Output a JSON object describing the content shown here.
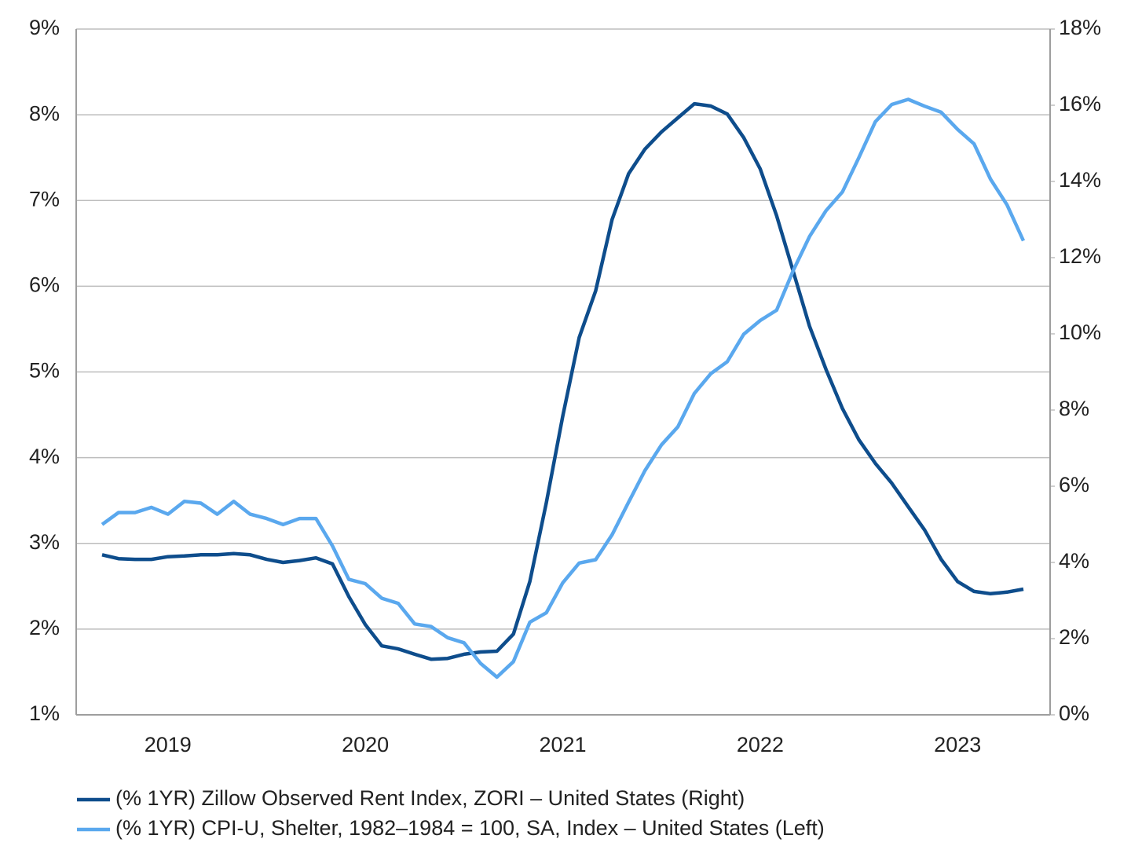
{
  "chart_data": {
    "type": "line",
    "categories": [
      null,
      null,
      null,
      null,
      "2019",
      null,
      null,
      null,
      null,
      null,
      null,
      null,
      null,
      null,
      null,
      null,
      "2020",
      null,
      null,
      null,
      null,
      null,
      null,
      null,
      null,
      null,
      null,
      null,
      "2021",
      null,
      null,
      null,
      null,
      null,
      null,
      null,
      null,
      null,
      null,
      null,
      "2022",
      null,
      null,
      null,
      null,
      null,
      null,
      null,
      null,
      null,
      null,
      null,
      "2023",
      null,
      null,
      null,
      null
    ],
    "series": [
      {
        "name": "(% 1YR) Zillow Observed Rent Index, ZORI – United States (Right)",
        "color": "#0e4d8c",
        "axis": "y2",
        "values": [
          4.2,
          4.1,
          4.08,
          4.08,
          4.15,
          4.17,
          4.2,
          4.2,
          4.23,
          4.2,
          4.08,
          4.0,
          4.05,
          4.12,
          3.96,
          3.1,
          2.37,
          1.81,
          1.73,
          1.59,
          1.46,
          1.48,
          1.59,
          1.65,
          1.67,
          2.12,
          3.5,
          5.57,
          7.84,
          9.9,
          11.13,
          13.0,
          14.2,
          14.85,
          15.3,
          15.67,
          16.04,
          15.98,
          15.77,
          15.15,
          14.33,
          13.1,
          11.65,
          10.2,
          9.07,
          8.04,
          7.22,
          6.6,
          6.08,
          5.46,
          4.85,
          4.08,
          3.5,
          3.24,
          3.18,
          3.22,
          3.3
        ]
      },
      {
        "name": "(% 1YR) CPI-U, Shelter, 1982–1984 = 100, SA, Index – United States (Left)",
        "color": "#5aa8ee",
        "values": [
          3.22,
          3.36,
          3.36,
          3.42,
          3.34,
          3.49,
          3.47,
          3.34,
          3.49,
          3.34,
          3.29,
          3.22,
          3.29,
          3.29,
          2.97,
          2.58,
          2.53,
          2.36,
          2.3,
          2.06,
          2.03,
          1.9,
          1.84,
          1.6,
          1.44,
          1.62,
          2.08,
          2.19,
          2.54,
          2.77,
          2.81,
          3.1,
          3.48,
          3.85,
          4.15,
          4.36,
          4.75,
          4.98,
          5.12,
          5.44,
          5.6,
          5.72,
          6.18,
          6.58,
          6.88,
          7.1,
          7.5,
          7.92,
          8.12,
          8.18,
          8.1,
          8.03,
          7.83,
          7.66,
          7.25,
          6.95,
          6.53
        ]
      }
    ],
    "ylim": [
      1,
      9
    ],
    "yticks": [
      {
        "value": 1,
        "label": "1%"
      },
      {
        "value": 2,
        "label": "2%"
      },
      {
        "value": 3,
        "label": "3%"
      },
      {
        "value": 4,
        "label": "4%"
      },
      {
        "value": 5,
        "label": "5%"
      },
      {
        "value": 6,
        "label": "6%"
      },
      {
        "value": 7,
        "label": "7%"
      },
      {
        "value": 8,
        "label": "8%"
      },
      {
        "value": 9,
        "label": "9%"
      }
    ],
    "y2lim": [
      0,
      18
    ],
    "y2ticks": [
      {
        "value": 0,
        "label": "0%"
      },
      {
        "value": 2,
        "label": "2%"
      },
      {
        "value": 4,
        "label": "4%"
      },
      {
        "value": 6,
        "label": "6%"
      },
      {
        "value": 8,
        "label": "8%"
      },
      {
        "value": 10,
        "label": "10%"
      },
      {
        "value": 12,
        "label": "12%"
      },
      {
        "value": 14,
        "label": "14%"
      },
      {
        "value": 16,
        "label": "16%"
      },
      {
        "value": 18,
        "label": "18%"
      }
    ],
    "grid": true
  }
}
